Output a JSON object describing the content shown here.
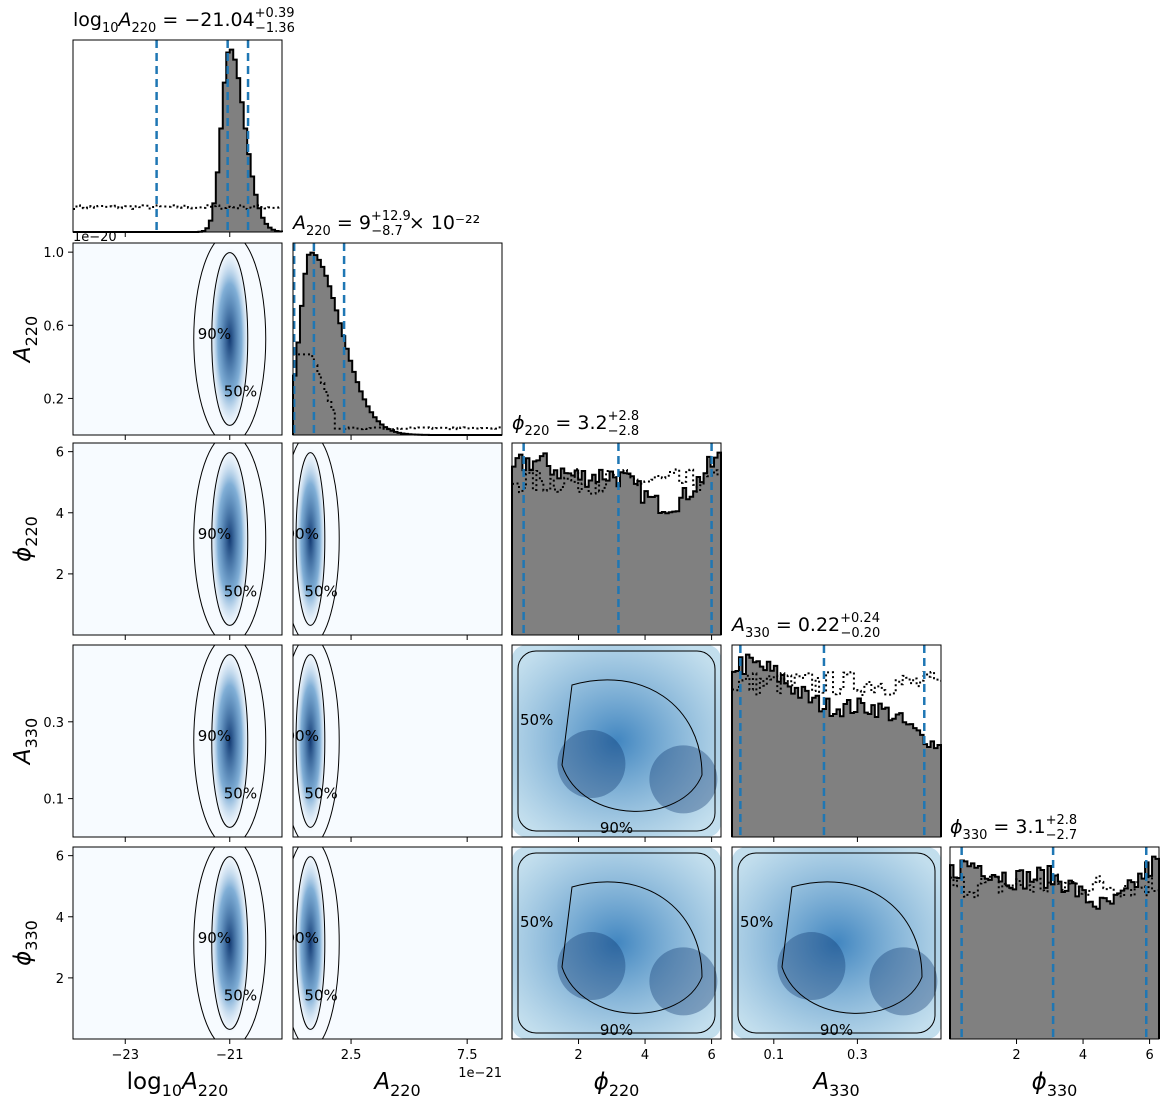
{
  "chart_data": {
    "type": "corner",
    "parameters": [
      {
        "name": "log10_A220",
        "axis_label": {
          "base": "log",
          "sub": "10",
          "main": "A",
          "msub": "220"
        },
        "title": {
          "lhs_base": "log",
          "lhs_sub": "10",
          "lhs_main": "A",
          "lhs_msub": "220",
          "value": "= −21.04",
          "plus": "+0.39",
          "minus": "−1.36",
          "suffix": ""
        },
        "range": [
          -24,
          -20
        ],
        "ticks": [
          -23,
          -21
        ],
        "tick_labels": [
          "−23",
          "−21"
        ],
        "quantiles": [
          -22.4,
          -21.04,
          -20.65
        ],
        "offset_text": "",
        "posterior": {
          "type": "peak",
          "center": -21.0,
          "sigma": 0.28,
          "skew": -0.6
        },
        "prior": {
          "level": 0.13
        }
      },
      {
        "name": "A220",
        "axis_label": {
          "main": "A",
          "msub": "220"
        },
        "title": {
          "lhs_main": "A",
          "lhs_msub": "220",
          "value": "= 9",
          "plus": "+12.9",
          "minus": "−8.7",
          "suffix": "× 10⁻²²"
        },
        "range": [
          0,
          9e-21
        ],
        "ticks": [
          2.5e-21,
          7.5e-21
        ],
        "tick_labels": [
          "2.5",
          "7.5"
        ],
        "quantiles": [
          5e-23,
          9e-22,
          2.2e-21
        ],
        "offset_text": "1e−21",
        "posterior": {
          "type": "peak",
          "center": 7.5e-22,
          "sigma": 4.5e-22,
          "skew": 2.0
        },
        "prior": {
          "level": 0.42
        }
      },
      {
        "name": "phi220",
        "axis_label": {
          "main": "ϕ",
          "msub": "220"
        },
        "title": {
          "lhs_main": "ϕ",
          "lhs_msub": "220",
          "value": "= 3.2",
          "plus": "+2.8",
          "minus": "−2.8",
          "suffix": ""
        },
        "range": [
          0,
          6.2832
        ],
        "ticks": [
          2,
          4,
          6
        ],
        "tick_labels": [
          "2",
          "4",
          "6"
        ],
        "quantiles": [
          0.35,
          3.2,
          6.0
        ],
        "offset_text": "",
        "posterior": {
          "type": "flat",
          "level": 0.72
        },
        "prior": {
          "level": 0.8
        }
      },
      {
        "name": "A330",
        "axis_label": {
          "main": "A",
          "msub": "330"
        },
        "title": {
          "lhs_main": "A",
          "lhs_msub": "330",
          "value": "= 0.22",
          "plus": "+0.24",
          "minus": "−0.20",
          "suffix": ""
        },
        "range": [
          0,
          0.5
        ],
        "ticks": [
          0.1,
          0.3
        ],
        "tick_labels": [
          "0.1",
          "0.3"
        ],
        "quantiles": [
          0.02,
          0.22,
          0.46
        ],
        "offset_text": "",
        "posterior": {
          "type": "declining",
          "level": 0.82
        },
        "prior": {
          "level": 0.8
        }
      },
      {
        "name": "phi330",
        "axis_label": {
          "main": "ϕ",
          "msub": "330"
        },
        "title": {
          "lhs_main": "ϕ",
          "lhs_msub": "330",
          "value": "= 3.1",
          "plus": "+2.8",
          "minus": "−2.7",
          "suffix": ""
        },
        "range": [
          0,
          6.2832
        ],
        "ticks": [
          2,
          4,
          6
        ],
        "tick_labels": [
          "2",
          "4",
          "6"
        ],
        "quantiles": [
          0.35,
          3.1,
          5.9
        ],
        "offset_text": "",
        "posterior": {
          "type": "flat",
          "level": 0.8
        },
        "prior": {
          "level": 0.8
        }
      }
    ],
    "y_tick_labels": {
      "A220": [
        "0.2",
        "0.6",
        "1.0"
      ],
      "A220_values": [
        2e-21,
        6e-21,
        1e-20
      ],
      "A220_offset": "1e−20",
      "phi220": [
        "2",
        "4",
        "6"
      ],
      "A330": [
        "0.1",
        "0.3"
      ],
      "phi330": [
        "2",
        "4",
        "6"
      ]
    },
    "contour_levels": [
      "50%",
      "90%"
    ],
    "colors": {
      "hist_fill": "#808080",
      "quantile_line": "#1f77b4",
      "density": "#08306b",
      "density_bg": "#f7fbff"
    }
  }
}
